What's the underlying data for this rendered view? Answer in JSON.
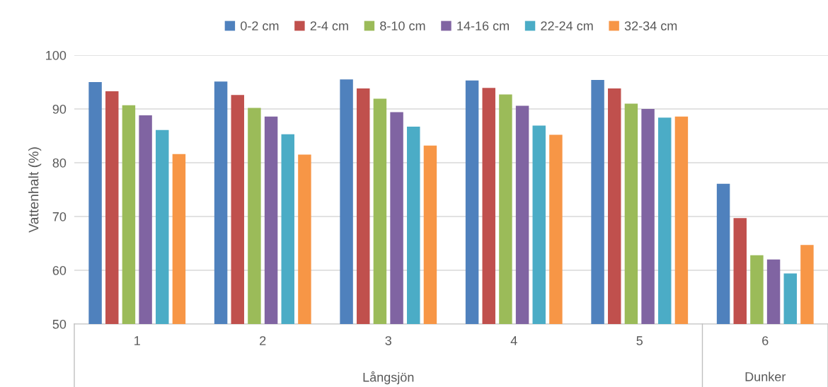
{
  "chart_data": {
    "type": "bar",
    "ylabel": "Vattenhalt (%)",
    "categories": [
      "1",
      "2",
      "3",
      "4",
      "5",
      "6"
    ],
    "series": [
      {
        "name": "0-2 cm",
        "color": "#4f81bd",
        "values": [
          95.0,
          95.1,
          95.5,
          95.3,
          95.4,
          76.1
        ]
      },
      {
        "name": "2-4 cm",
        "color": "#c0504d",
        "values": [
          93.3,
          92.6,
          93.8,
          93.9,
          93.8,
          69.7
        ]
      },
      {
        "name": "8-10 cm",
        "color": "#9bbb59",
        "values": [
          90.7,
          90.2,
          91.9,
          92.7,
          91.0,
          62.8
        ]
      },
      {
        "name": "14-16 cm",
        "color": "#8064a2",
        "values": [
          88.8,
          88.6,
          89.4,
          90.6,
          90.0,
          62.0
        ]
      },
      {
        "name": "22-24 cm",
        "color": "#4bacc6",
        "values": [
          86.1,
          85.3,
          86.7,
          86.9,
          88.4,
          59.4
        ]
      },
      {
        "name": "32-34 cm",
        "color": "#f79646",
        "values": [
          81.6,
          81.5,
          83.2,
          85.2,
          88.6,
          64.7
        ]
      }
    ],
    "ylim": [
      50,
      100
    ],
    "yticks": [
      50,
      60,
      70,
      80,
      90,
      100
    ],
    "grid": "y",
    "legend": "top",
    "annotations": [
      {
        "text": "Långsjön",
        "x": "3"
      },
      {
        "text": "Dunker",
        "x": "6"
      }
    ]
  }
}
